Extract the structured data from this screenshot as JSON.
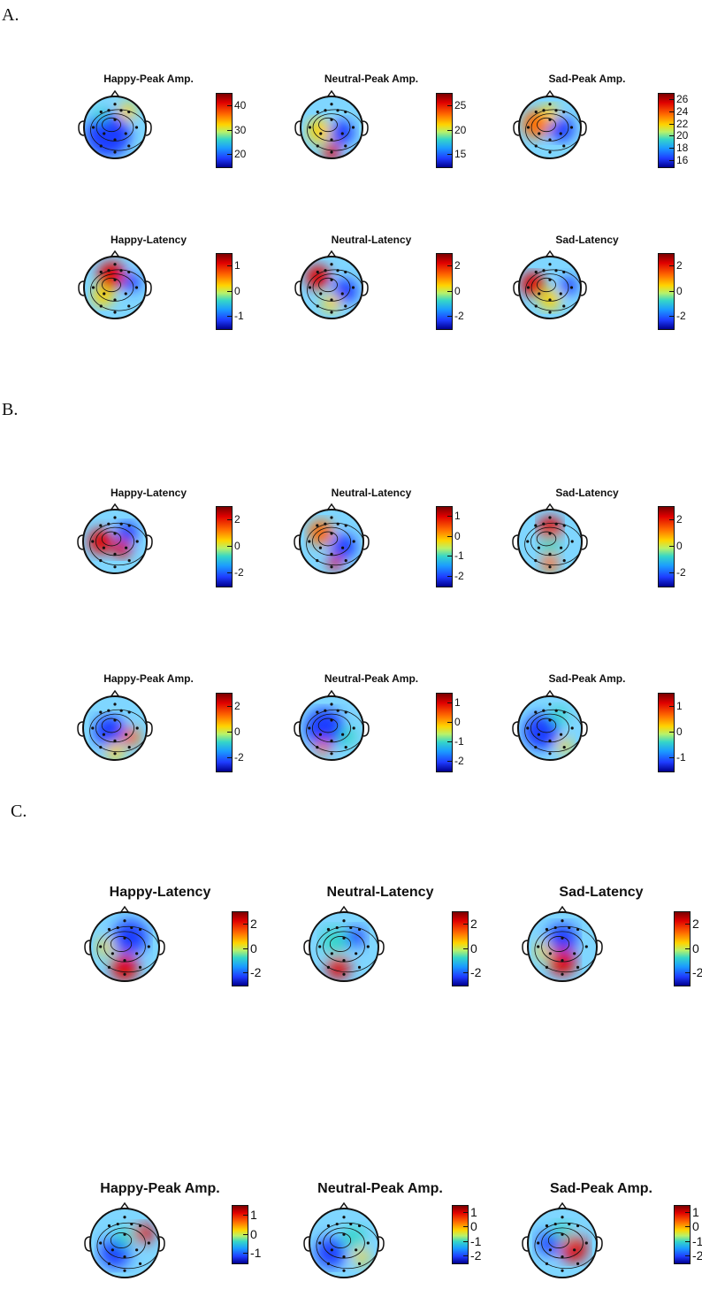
{
  "sections": [
    {
      "label": "A.",
      "panels": [
        {
          "title": "Happy-Peak Amp.",
          "ticks": [
            "40",
            "30",
            "20"
          ],
          "colormap": {
            "max": 40,
            "min": 16
          }
        },
        {
          "title": "Neutral-Peak Amp.",
          "ticks": [
            "25",
            "20",
            "15"
          ],
          "colormap": {
            "max": 29,
            "min": 15
          }
        },
        {
          "title": "Sad-Peak Amp.",
          "ticks": [
            "26",
            "24",
            "22",
            "20",
            "18",
            "16"
          ],
          "colormap": {
            "max": 27,
            "min": 16
          }
        },
        {
          "title": "Happy-Latency",
          "ticks": [
            "1",
            "0",
            "-1"
          ],
          "colormap": {
            "max": 1.8,
            "min": -1.6
          }
        },
        {
          "title": "Neutral-Latency",
          "ticks": [
            "2",
            "0",
            "-2"
          ],
          "colormap": {
            "max": 2.1,
            "min": -2.1
          }
        },
        {
          "title": "Sad-Latency",
          "ticks": [
            "2",
            "0",
            "-2"
          ],
          "colormap": {
            "max": 2.1,
            "min": -2.6
          }
        }
      ]
    },
    {
      "label": "B.",
      "panels": [
        {
          "title": "Happy-Latency",
          "ticks": [
            "2",
            "0",
            "-2"
          ],
          "colormap": {
            "max": 2.1,
            "min": -2.1
          }
        },
        {
          "title": "Neutral-Latency",
          "ticks": [
            "1",
            "0",
            "-1",
            "-2"
          ],
          "colormap": {
            "max": 1.6,
            "min": -2.8
          }
        },
        {
          "title": "Sad-Latency",
          "ticks": [
            "2",
            "0",
            "-2"
          ],
          "colormap": {
            "max": 2.1,
            "min": -3.2
          }
        },
        {
          "title": "Happy-Peak Amp.",
          "ticks": [
            "2",
            "0",
            "-2"
          ],
          "colormap": {
            "max": 2.1,
            "min": -2.8
          }
        },
        {
          "title": "Neutral-Peak Amp.",
          "ticks": [
            "1",
            "0",
            "-1",
            "-2"
          ],
          "colormap": {
            "max": 1.6,
            "min": -2.6
          }
        },
        {
          "title": "Sad-Peak Amp.",
          "ticks": [
            "1",
            "0",
            "-1"
          ],
          "colormap": {
            "max": 1.3,
            "min": -2.2
          }
        }
      ]
    },
    {
      "label": "C.",
      "panels": [
        {
          "title": "Happy-Latency",
          "ticks": [
            "2",
            "0",
            "-2"
          ],
          "colormap": {
            "max": 2.8,
            "min": -3.8
          }
        },
        {
          "title": "Neutral-Latency",
          "ticks": [
            "2",
            "0",
            "-2"
          ],
          "colormap": {
            "max": 3.6,
            "min": -3.2
          }
        },
        {
          "title": "Sad-Latency",
          "ticks": [
            "2",
            "0",
            "-2"
          ],
          "colormap": {
            "max": 2.0,
            "min": -2.0
          }
        },
        {
          "title": "Happy-Peak Amp.",
          "ticks": [
            "1",
            "0",
            "-1"
          ],
          "colormap": {
            "max": 1.3,
            "min": -1.9
          }
        },
        {
          "title": "Neutral-Peak Amp.",
          "ticks": [
            "1",
            "0",
            "-1",
            "-2"
          ],
          "colormap": {
            "max": 1.8,
            "min": -2.4
          }
        },
        {
          "title": "Sad-Peak Amp.",
          "ticks": [
            "1",
            "0",
            "-1",
            "-2"
          ],
          "colormap": {
            "max": 1.3,
            "min": -2.3
          }
        }
      ]
    }
  ],
  "colors": {
    "dark_red": "#7a0000",
    "red": "#e00000",
    "orange": "#ff6a00",
    "yellow": "#ffd400",
    "cyan": "#35d6c8",
    "blue": "#1e3cff",
    "dark_blue": "#00008f"
  }
}
